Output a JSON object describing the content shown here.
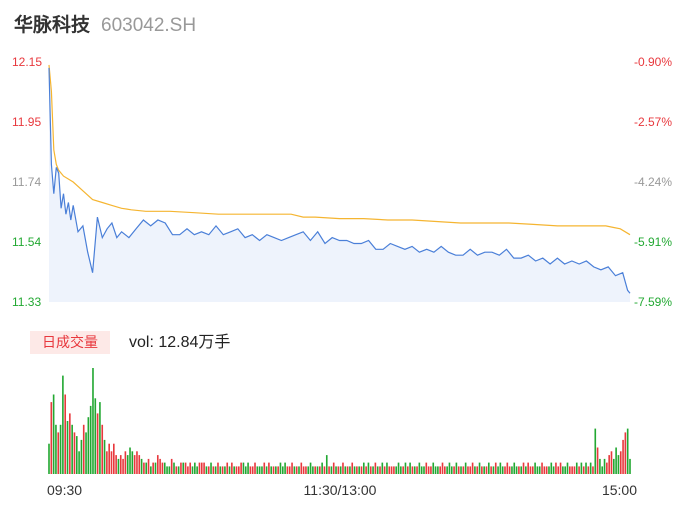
{
  "header": {
    "name": "华脉科技",
    "code": "603042.SH"
  },
  "price_axis": {
    "labels": [
      "12.15",
      "11.95",
      "11.74",
      "11.54",
      "11.33"
    ],
    "values": [
      12.15,
      11.95,
      11.74,
      11.54,
      11.33
    ],
    "label_colors": [
      "#e8383d",
      "#e8383d",
      "#999999",
      "#22a832",
      "#22a832"
    ]
  },
  "pct_axis": {
    "labels": [
      "-0.90%",
      "-2.57%",
      "-4.24%",
      "-5.91%",
      "-7.59%"
    ],
    "label_colors": [
      "#e8383d",
      "#e8383d",
      "#999999",
      "#22a832",
      "#22a832"
    ]
  },
  "volume_panel": {
    "badge": "日成交量",
    "vol_text": "vol: 12.84万手"
  },
  "time_axis": {
    "labels": [
      "09:30",
      "11:30/13:00",
      "15:00"
    ]
  },
  "colors": {
    "price_line": "#4a7fd8",
    "price_fill": "#eef3fc",
    "avg_line": "#f5b531",
    "up": "#e8383d",
    "down": "#22a832",
    "flat": "#999999",
    "badge_bg": "#fde9e7",
    "badge_text": "#e8383d",
    "title": "#333333",
    "code": "#999999"
  },
  "chart_data": {
    "type": "line",
    "x_unit": "minute index over the trading day (0 = 09:30, 120 = 11:30/13:00, 240 = 15:00)",
    "ylim": [
      11.33,
      12.15
    ],
    "series": [
      {
        "x": [
          0,
          1,
          2,
          3,
          4,
          5,
          6,
          7,
          8,
          9,
          10,
          12,
          14,
          16,
          18,
          20,
          22,
          24,
          26,
          28,
          30,
          33,
          36,
          39,
          42,
          45,
          48,
          51,
          54,
          57,
          60,
          63,
          66,
          69,
          72,
          75,
          78,
          81,
          84,
          87,
          90,
          93,
          96,
          99,
          102,
          105,
          108,
          111,
          114,
          117,
          120,
          123,
          126,
          129,
          132,
          135,
          138,
          141,
          144,
          147,
          150,
          153,
          156,
          159,
          162,
          165,
          168,
          171,
          174,
          177,
          180,
          183,
          186,
          189,
          192,
          195,
          198,
          201,
          204,
          207,
          210,
          213,
          216,
          219,
          222,
          225,
          228,
          231,
          234,
          237,
          239,
          240
        ],
        "values": [
          12.13,
          11.8,
          11.7,
          11.79,
          11.77,
          11.65,
          11.7,
          11.63,
          11.67,
          11.61,
          11.66,
          11.57,
          11.59,
          11.5,
          11.43,
          11.62,
          11.55,
          11.58,
          11.6,
          11.55,
          11.57,
          11.55,
          11.58,
          11.61,
          11.59,
          11.61,
          11.6,
          11.56,
          11.56,
          11.58,
          11.56,
          11.57,
          11.56,
          11.59,
          11.56,
          11.57,
          11.58,
          11.55,
          11.56,
          11.54,
          11.56,
          11.55,
          11.54,
          11.55,
          11.56,
          11.57,
          11.54,
          11.57,
          11.53,
          11.55,
          11.54,
          11.54,
          11.53,
          11.53,
          11.54,
          11.51,
          11.51,
          11.53,
          11.52,
          11.51,
          11.52,
          11.5,
          11.51,
          11.5,
          11.52,
          11.5,
          11.49,
          11.49,
          11.51,
          11.49,
          11.5,
          11.5,
          11.49,
          11.51,
          11.48,
          11.48,
          11.49,
          11.47,
          11.48,
          11.46,
          11.48,
          11.46,
          11.47,
          11.46,
          11.47,
          11.45,
          11.44,
          11.45,
          11.42,
          11.43,
          11.37,
          11.36
        ]
      },
      {
        "x": [
          0,
          1,
          2,
          3,
          4,
          6,
          10,
          14,
          18,
          22,
          26,
          30,
          34,
          40,
          50,
          60,
          70,
          80,
          90,
          100,
          105,
          110,
          120,
          130,
          140,
          150,
          160,
          170,
          180,
          190,
          200,
          210,
          220,
          230,
          233,
          236,
          240
        ],
        "values": [
          12.14,
          12.05,
          11.85,
          11.8,
          11.78,
          11.76,
          11.74,
          11.71,
          11.68,
          11.67,
          11.66,
          11.65,
          11.645,
          11.64,
          11.64,
          11.635,
          11.63,
          11.63,
          11.63,
          11.63,
          11.62,
          11.62,
          11.615,
          11.615,
          11.61,
          11.61,
          11.605,
          11.6,
          11.6,
          11.6,
          11.595,
          11.59,
          11.59,
          11.59,
          11.585,
          11.58,
          11.56
        ]
      }
    ],
    "volume": {
      "x_count": 241,
      "values": [
        8,
        19,
        21,
        13,
        11,
        13,
        26,
        21,
        14,
        16,
        13,
        11,
        10,
        6,
        9,
        13,
        11,
        15,
        18,
        28,
        20,
        16,
        19,
        13,
        9,
        6,
        8,
        6,
        8,
        5,
        4,
        5,
        4,
        6,
        5,
        7,
        6,
        5,
        6,
        5,
        4,
        3,
        3,
        4,
        2,
        3,
        3,
        5,
        4,
        3,
        3,
        2,
        2,
        4,
        3,
        2,
        2,
        3,
        3,
        3,
        2,
        3,
        2,
        3,
        2,
        3,
        3,
        3,
        2,
        2,
        3,
        2,
        2,
        3,
        2,
        2,
        2,
        3,
        2,
        3,
        2,
        2,
        2,
        3,
        3,
        2,
        3,
        2,
        2,
        3,
        2,
        2,
        2,
        3,
        2,
        3,
        2,
        2,
        2,
        2,
        3,
        2,
        3,
        2,
        2,
        3,
        2,
        2,
        2,
        3,
        2,
        2,
        2,
        3,
        2,
        2,
        2,
        2,
        3,
        2,
        5,
        2,
        2,
        3,
        2,
        2,
        2,
        3,
        2,
        2,
        2,
        3,
        2,
        2,
        2,
        2,
        3,
        2,
        3,
        2,
        2,
        3,
        2,
        2,
        3,
        2,
        3,
        2,
        2,
        2,
        2,
        3,
        2,
        2,
        3,
        2,
        3,
        2,
        2,
        2,
        3,
        2,
        2,
        3,
        2,
        2,
        3,
        2,
        2,
        2,
        3,
        2,
        2,
        3,
        2,
        2,
        3,
        2,
        2,
        2,
        3,
        2,
        2,
        3,
        2,
        2,
        3,
        2,
        2,
        2,
        3,
        2,
        2,
        3,
        2,
        3,
        2,
        2,
        3,
        2,
        2,
        3,
        2,
        2,
        2,
        3,
        2,
        3,
        2,
        2,
        3,
        2,
        2,
        3,
        2,
        2,
        2,
        3,
        2,
        3,
        2,
        3,
        2,
        2,
        3,
        2,
        2,
        2,
        3,
        2,
        3,
        2,
        3,
        2,
        3,
        2,
        12,
        7,
        4,
        2,
        4,
        3,
        5,
        6,
        4,
        7,
        5,
        6,
        9,
        11,
        12,
        4
      ],
      "max": 28
    }
  }
}
